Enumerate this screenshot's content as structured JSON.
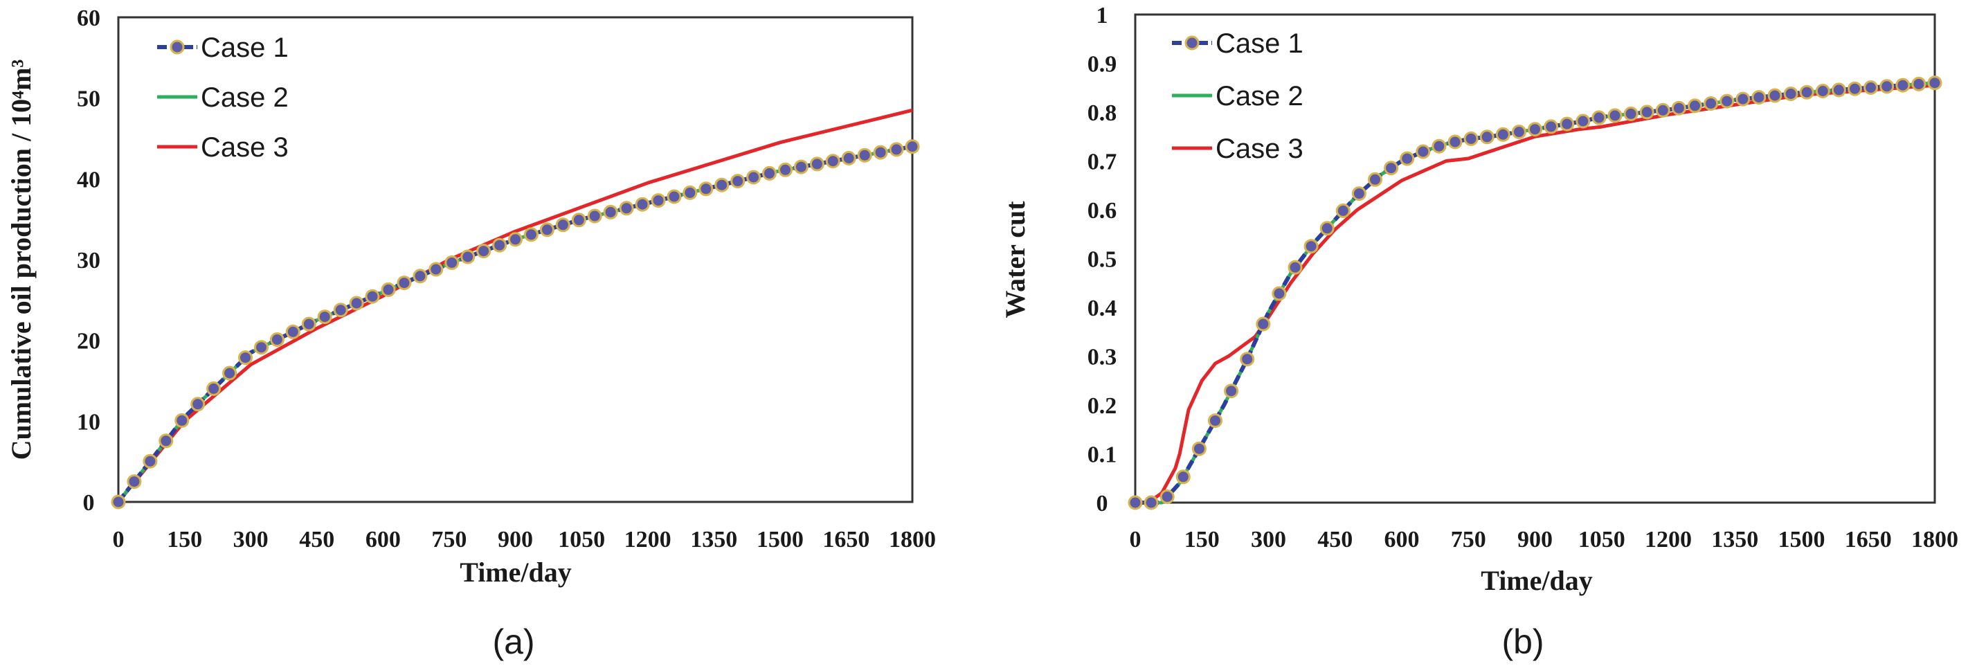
{
  "colors": {
    "case1_line": "#2b3f9e",
    "case1_marker_fill": "#5b5ba8",
    "case1_marker_edge": "#d9b24a",
    "case2": "#2fae60",
    "case3": "#e3262a",
    "axis": "#333333"
  },
  "chart_data": [
    {
      "id": "a",
      "type": "line",
      "caption": "(a)",
      "xlabel": "Time/day",
      "ylabel": "Cumulative oil production / 10⁴m³",
      "xlim": [
        0,
        1800
      ],
      "ylim": [
        0,
        60
      ],
      "xticks": [
        0,
        150,
        300,
        450,
        600,
        750,
        900,
        1050,
        1200,
        1350,
        1500,
        1650,
        1800
      ],
      "yticks": [
        0,
        10,
        20,
        30,
        40,
        50,
        60
      ],
      "legend": {
        "position": "top-left",
        "entries": [
          "Case 1",
          "Case 2",
          "Case 3"
        ]
      },
      "series": [
        {
          "name": "Case 1",
          "style": "line-markers",
          "x": [
            0,
            150,
            300,
            450,
            600,
            750,
            900,
            1050,
            1200,
            1350,
            1500,
            1650,
            1800
          ],
          "y": [
            0,
            10.5,
            18.5,
            22.5,
            26,
            29.5,
            32.5,
            35,
            37,
            39,
            41,
            42.5,
            44
          ]
        },
        {
          "name": "Case 2",
          "style": "line",
          "x": [
            0,
            150,
            300,
            450,
            600,
            750,
            900,
            1050,
            1200,
            1350,
            1500,
            1650,
            1800
          ],
          "y": [
            0,
            10.5,
            18.5,
            22.5,
            26,
            29.5,
            32.5,
            35,
            37,
            39,
            41,
            42.5,
            44
          ]
        },
        {
          "name": "Case 3",
          "style": "line",
          "x": [
            0,
            150,
            300,
            450,
            600,
            750,
            900,
            1050,
            1200,
            1350,
            1500,
            1650,
            1800
          ],
          "y": [
            0,
            10,
            17,
            21.5,
            25.5,
            30,
            33.5,
            36.5,
            39.5,
            42,
            44.5,
            46.5,
            48.5
          ]
        }
      ]
    },
    {
      "id": "b",
      "type": "line",
      "caption": "(b)",
      "xlabel": "Time/day",
      "ylabel": "Water cut",
      "xlim": [
        0,
        1800
      ],
      "ylim": [
        0,
        1
      ],
      "xticks": [
        0,
        150,
        300,
        450,
        600,
        750,
        900,
        1050,
        1200,
        1350,
        1500,
        1650,
        1800
      ],
      "yticks": [
        "0",
        "0.1",
        "0.2",
        "0.3",
        "0.4",
        "0.5",
        "0.6",
        "0.7",
        "0.8",
        "0.9",
        "1"
      ],
      "legend": {
        "position": "top-left",
        "entries": [
          "Case 1",
          "Case 2",
          "Case 3"
        ]
      },
      "series": [
        {
          "name": "Case 1",
          "style": "line-markers",
          "x": [
            0,
            30,
            60,
            100,
            150,
            200,
            250,
            300,
            350,
            400,
            450,
            500,
            550,
            600,
            650,
            700,
            750,
            800,
            900,
            1000,
            1050,
            1200,
            1350,
            1500,
            1650,
            1800
          ],
          "y": [
            0,
            0,
            0,
            0.04,
            0.12,
            0.2,
            0.29,
            0.39,
            0.47,
            0.53,
            0.58,
            0.63,
            0.67,
            0.7,
            0.72,
            0.735,
            0.745,
            0.75,
            0.765,
            0.78,
            0.79,
            0.805,
            0.825,
            0.84,
            0.85,
            0.86
          ]
        },
        {
          "name": "Case 2",
          "style": "line",
          "x": [
            0,
            30,
            60,
            100,
            150,
            200,
            250,
            300,
            350,
            400,
            450,
            500,
            550,
            600,
            650,
            700,
            750,
            800,
            900,
            1000,
            1050,
            1200,
            1350,
            1500,
            1650,
            1800
          ],
          "y": [
            0,
            0,
            0,
            0.04,
            0.12,
            0.2,
            0.29,
            0.39,
            0.47,
            0.53,
            0.58,
            0.63,
            0.67,
            0.7,
            0.72,
            0.735,
            0.745,
            0.75,
            0.765,
            0.78,
            0.79,
            0.805,
            0.825,
            0.84,
            0.85,
            0.86
          ]
        },
        {
          "name": "Case 3",
          "style": "line",
          "x": [
            0,
            30,
            60,
            90,
            100,
            120,
            150,
            180,
            210,
            240,
            270,
            300,
            350,
            400,
            450,
            500,
            550,
            600,
            650,
            700,
            750,
            800,
            900,
            1000,
            1050,
            1200,
            1350,
            1500,
            1650,
            1800
          ],
          "y": [
            0,
            0,
            0.02,
            0.07,
            0.1,
            0.19,
            0.25,
            0.285,
            0.3,
            0.32,
            0.34,
            0.38,
            0.45,
            0.51,
            0.56,
            0.6,
            0.63,
            0.66,
            0.68,
            0.7,
            0.705,
            0.72,
            0.75,
            0.765,
            0.77,
            0.795,
            0.815,
            0.835,
            0.845,
            0.855
          ]
        }
      ]
    }
  ]
}
